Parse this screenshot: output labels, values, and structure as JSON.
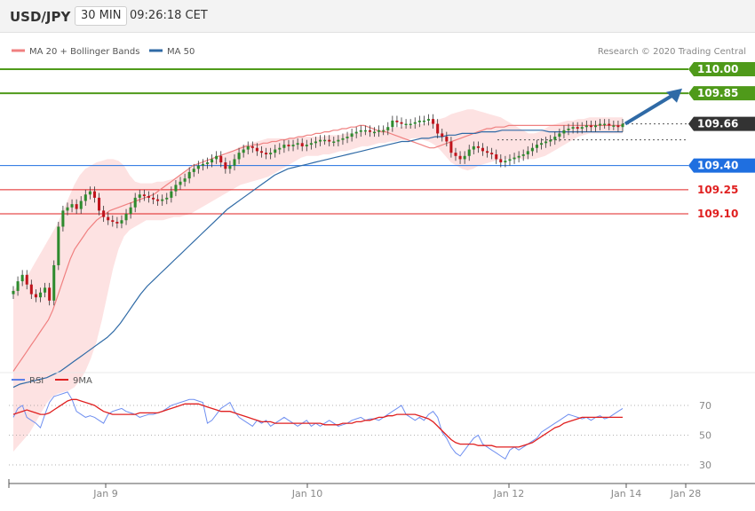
{
  "header": {
    "symbol": "USD/JPY",
    "timeframe": "30 MIN",
    "time": "09:26:18 CET"
  },
  "price_panel": {
    "legend": [
      {
        "label": "MA 20 + Bollinger Bands",
        "color": "#f08080"
      },
      {
        "label": "MA 50",
        "color": "#2f6aa6"
      }
    ],
    "credit": "Research © 2020 Trading Central",
    "levels": [
      {
        "value": 110.0,
        "label": "110.00",
        "kind": "resistance",
        "color": "#4f9a1a"
      },
      {
        "value": 109.85,
        "label": "109.85",
        "kind": "resistance",
        "color": "#4f9a1a"
      },
      {
        "value": 109.66,
        "label": "109.66",
        "kind": "last",
        "color": "#333333"
      },
      {
        "value": 109.4,
        "label": "109.40",
        "kind": "pivot",
        "color": "#1f6fe0"
      },
      {
        "value": 109.25,
        "label": "109.25",
        "kind": "support",
        "color": "#e02020"
      },
      {
        "value": 109.1,
        "label": "109.10",
        "kind": "support",
        "color": "#e02020"
      }
    ]
  },
  "rsi_panel": {
    "legend": [
      {
        "label": "RSI",
        "color": "#5b7fe8"
      },
      {
        "label": "9MA",
        "color": "#e02020"
      }
    ],
    "yticks": [
      "70",
      "50",
      "30"
    ]
  },
  "x_axis": {
    "labels": [
      "Jan 9",
      "Jan 10",
      "Jan 12",
      "Jan 14",
      "Jan 28"
    ]
  },
  "chart_data": {
    "type": "line",
    "title": "",
    "x_labels": [
      "Jan 9",
      "Jan 10",
      "Jan 12",
      "Jan 14",
      "Jan 28"
    ],
    "ylim": [
      108.2,
      110.15
    ],
    "last_price": 109.66,
    "levels": [
      110.0,
      109.85,
      109.66,
      109.4,
      109.25,
      109.1
    ],
    "close": [
      108.62,
      108.68,
      108.72,
      108.66,
      108.6,
      108.58,
      108.61,
      108.64,
      108.56,
      108.78,
      109.02,
      109.12,
      109.14,
      109.16,
      109.13,
      109.18,
      109.22,
      109.24,
      109.2,
      109.12,
      109.08,
      109.06,
      109.05,
      109.04,
      109.06,
      109.1,
      109.14,
      109.2,
      109.22,
      109.21,
      109.2,
      109.19,
      109.18,
      109.19,
      109.2,
      109.24,
      109.28,
      109.3,
      109.32,
      109.36,
      109.38,
      109.4,
      109.41,
      109.42,
      109.44,
      109.46,
      109.42,
      109.38,
      109.4,
      109.44,
      109.48,
      109.5,
      109.52,
      109.51,
      109.49,
      109.48,
      109.47,
      109.48,
      109.5,
      109.51,
      109.53,
      109.52,
      109.53,
      109.54,
      109.52,
      109.53,
      109.54,
      109.55,
      109.56,
      109.56,
      109.55,
      109.55,
      109.56,
      109.57,
      109.58,
      109.6,
      109.61,
      109.62,
      109.62,
      109.61,
      109.61,
      109.62,
      109.62,
      109.64,
      109.68,
      109.67,
      109.66,
      109.66,
      109.66,
      109.67,
      109.68,
      109.68,
      109.69,
      109.66,
      109.6,
      109.58,
      109.55,
      109.48,
      109.46,
      109.44,
      109.46,
      109.5,
      109.52,
      109.51,
      109.49,
      109.48,
      109.47,
      109.44,
      109.42,
      109.43,
      109.44,
      109.45,
      109.46,
      109.47,
      109.49,
      109.51,
      109.53,
      109.54,
      109.55,
      109.56,
      109.58,
      109.6,
      109.62,
      109.63,
      109.64,
      109.63,
      109.64,
      109.65,
      109.64,
      109.65,
      109.66,
      109.66,
      109.65,
      109.65,
      109.64,
      109.66
    ],
    "ma20": [
      108.12,
      108.16,
      108.2,
      108.24,
      108.28,
      108.32,
      108.36,
      108.4,
      108.44,
      108.5,
      108.58,
      108.66,
      108.74,
      108.82,
      108.88,
      108.92,
      108.96,
      109.0,
      109.03,
      109.06,
      109.08,
      109.1,
      109.12,
      109.13,
      109.14,
      109.15,
      109.16,
      109.17,
      109.18,
      109.19,
      109.2,
      109.21,
      109.22,
      109.24,
      109.26,
      109.28,
      109.3,
      109.32,
      109.34,
      109.36,
      109.38,
      109.4,
      109.41,
      109.42,
      109.43,
      109.44,
      109.45,
      109.46,
      109.47,
      109.48,
      109.49,
      109.5,
      109.51,
      109.52,
      109.52,
      109.53,
      109.53,
      109.54,
      109.54,
      109.55,
      109.55,
      109.56,
      109.56,
      109.57,
      109.57,
      109.58,
      109.58,
      109.59,
      109.59,
      109.6,
      109.6,
      109.61,
      109.61,
      109.62,
      109.62,
      109.63,
      109.63,
      109.64,
      109.64,
      109.65,
      109.65,
      109.64,
      109.63,
      109.62,
      109.61,
      109.61,
      109.6,
      109.59,
      109.58,
      109.57,
      109.56,
      109.55,
      109.54,
      109.53,
      109.52,
      109.51,
      109.51,
      109.52,
      109.53,
      109.54,
      109.55,
      109.56,
      109.57,
      109.58,
      109.59,
      109.6,
      109.61,
      109.62,
      109.63,
      109.63,
      109.64,
      109.64,
      109.64,
      109.65,
      109.65,
      109.65,
      109.65,
      109.65,
      109.65,
      109.65,
      109.65,
      109.65,
      109.65,
      109.65,
      109.65,
      109.65,
      109.65,
      109.65,
      109.65,
      109.65,
      109.65,
      109.65,
      109.65,
      109.65,
      109.65,
      109.65,
      109.65,
      109.65,
      109.65,
      109.65
    ],
    "bb_upper": [
      108.62,
      108.66,
      108.7,
      108.74,
      108.8,
      108.86,
      108.92,
      108.98,
      109.04,
      109.12,
      109.2,
      109.28,
      109.34,
      109.38,
      109.4,
      109.42,
      109.43,
      109.44,
      109.44,
      109.43,
      109.4,
      109.34,
      109.3,
      109.29,
      109.29,
      109.29,
      109.3,
      109.3,
      109.31,
      109.32,
      109.34,
      109.36,
      109.38,
      109.4,
      109.41,
      109.42,
      109.43,
      109.44,
      109.46,
      109.48,
      109.5,
      109.52,
      109.53,
      109.54,
      109.55,
      109.56,
      109.57,
      109.57,
      109.57,
      109.57,
      109.57,
      109.57,
      109.58,
      109.58,
      109.58,
      109.58,
      109.58,
      109.59,
      109.59,
      109.59,
      109.6,
      109.6,
      109.6,
      109.61,
      109.61,
      109.62,
      109.62,
      109.63,
      109.63,
      109.64,
      109.64,
      109.65,
      109.65,
      109.66,
      109.66,
      109.67,
      109.68,
      109.69,
      109.7,
      109.72,
      109.73,
      109.74,
      109.75,
      109.75,
      109.74,
      109.73,
      109.72,
      109.71,
      109.7,
      109.68,
      109.66,
      109.64,
      109.62,
      109.6,
      109.6,
      109.61,
      109.63,
      109.65,
      109.66,
      109.67,
      109.68,
      109.68,
      109.69,
      109.69,
      109.7,
      109.7,
      109.7,
      109.7,
      109.7,
      109.7,
      109.7
    ],
    "bb_lower": [
      107.62,
      107.66,
      107.7,
      107.74,
      107.8,
      107.86,
      107.92,
      107.96,
      107.98,
      107.99,
      108.0,
      108.02,
      108.06,
      108.12,
      108.2,
      108.3,
      108.44,
      108.6,
      108.76,
      108.88,
      108.96,
      109.0,
      109.02,
      109.04,
      109.06,
      109.06,
      109.06,
      109.06,
      109.07,
      109.08,
      109.08,
      109.09,
      109.1,
      109.12,
      109.14,
      109.16,
      109.18,
      109.2,
      109.22,
      109.24,
      109.26,
      109.28,
      109.29,
      109.3,
      109.31,
      109.32,
      109.33,
      109.35,
      109.37,
      109.39,
      109.41,
      109.43,
      109.45,
      109.46,
      109.46,
      109.46,
      109.47,
      109.47,
      109.48,
      109.49,
      109.49,
      109.5,
      109.51,
      109.52,
      109.52,
      109.53,
      109.54,
      109.54,
      109.55,
      109.55,
      109.56,
      109.56,
      109.57,
      109.57,
      109.56,
      109.55,
      109.53,
      109.5,
      109.46,
      109.42,
      109.4,
      109.38,
      109.37,
      109.38,
      109.4,
      109.41,
      109.42,
      109.43,
      109.44,
      109.44,
      109.44,
      109.44,
      109.44,
      109.44,
      109.44,
      109.45,
      109.46,
      109.48,
      109.5,
      109.52,
      109.54,
      109.56,
      109.58,
      109.59,
      109.6,
      109.6,
      109.6,
      109.6,
      109.6,
      109.6,
      109.6
    ],
    "ma50": [
      108.02,
      108.04,
      108.05,
      108.06,
      108.07,
      108.08,
      108.1,
      108.12,
      108.15,
      108.18,
      108.21,
      108.24,
      108.27,
      108.3,
      108.33,
      108.37,
      108.42,
      108.48,
      108.54,
      108.6,
      108.65,
      108.69,
      108.73,
      108.77,
      108.81,
      108.85,
      108.89,
      108.93,
      108.97,
      109.01,
      109.05,
      109.09,
      109.13,
      109.16,
      109.19,
      109.22,
      109.25,
      109.28,
      109.31,
      109.34,
      109.36,
      109.38,
      109.39,
      109.4,
      109.41,
      109.42,
      109.43,
      109.44,
      109.45,
      109.46,
      109.47,
      109.48,
      109.49,
      109.5,
      109.51,
      109.52,
      109.53,
      109.54,
      109.55,
      109.55,
      109.56,
      109.57,
      109.57,
      109.58,
      109.58,
      109.59,
      109.59,
      109.6,
      109.6,
      109.6,
      109.61,
      109.61,
      109.61,
      109.62,
      109.62,
      109.62,
      109.62,
      109.62,
      109.62,
      109.62,
      109.61,
      109.61,
      109.61,
      109.61,
      109.61,
      109.61,
      109.61,
      109.61,
      109.61,
      109.61,
      109.61,
      109.61
    ],
    "rsi": [
      62,
      68,
      70,
      62,
      60,
      58,
      55,
      64,
      72,
      76,
      77,
      78,
      79,
      74,
      66,
      64,
      62,
      63,
      62,
      60,
      58,
      64,
      66,
      67,
      68,
      66,
      65,
      64,
      62,
      63,
      64,
      64,
      65,
      66,
      68,
      70,
      71,
      72,
      73,
      74,
      74,
      73,
      72,
      58,
      60,
      64,
      68,
      70,
      72,
      66,
      62,
      60,
      58,
      56,
      60,
      58,
      60,
      56,
      58,
      60,
      62,
      60,
      58,
      56,
      58,
      60,
      56,
      58,
      56,
      58,
      60,
      58,
      56,
      57,
      58,
      60,
      61,
      62,
      60,
      61,
      61,
      60,
      62,
      64,
      66,
      68,
      70,
      64,
      62,
      60,
      62,
      60,
      64,
      66,
      62,
      52,
      48,
      42,
      38,
      36,
      40,
      44,
      48,
      50,
      44,
      42,
      40,
      38,
      36,
      34,
      40,
      42,
      40,
      42,
      44,
      46,
      48,
      52,
      54,
      56,
      58,
      60,
      62,
      64,
      63,
      62,
      61,
      62,
      60,
      62,
      63,
      61,
      62,
      64,
      66,
      68
    ],
    "rsi_9ma": [
      64,
      65,
      66,
      67,
      66,
      65,
      64,
      64,
      65,
      67,
      69,
      71,
      73,
      74,
      74,
      73,
      72,
      71,
      70,
      68,
      66,
      65,
      64,
      64,
      64,
      64,
      64,
      64,
      65,
      65,
      65,
      65,
      65,
      66,
      67,
      68,
      69,
      70,
      71,
      71,
      71,
      71,
      70,
      69,
      68,
      67,
      66,
      66,
      66,
      65,
      64,
      63,
      62,
      61,
      60,
      59,
      59,
      59,
      58,
      58,
      58,
      58,
      58,
      58,
      58,
      58,
      58,
      58,
      58,
      57,
      57,
      57,
      57,
      58,
      58,
      58,
      59,
      59,
      60,
      60,
      61,
      62,
      62,
      63,
      63,
      64,
      64,
      64,
      64,
      64,
      63,
      62,
      61,
      59,
      56,
      53,
      50,
      47,
      45,
      44,
      44,
      44,
      44,
      43,
      43,
      43,
      43,
      42,
      42,
      42,
      42,
      42,
      42,
      43,
      44,
      45,
      47,
      49,
      51,
      53,
      55,
      56,
      58,
      59,
      60,
      61,
      62,
      62,
      62,
      62,
      62,
      62,
      62,
      62,
      62,
      62
    ]
  }
}
